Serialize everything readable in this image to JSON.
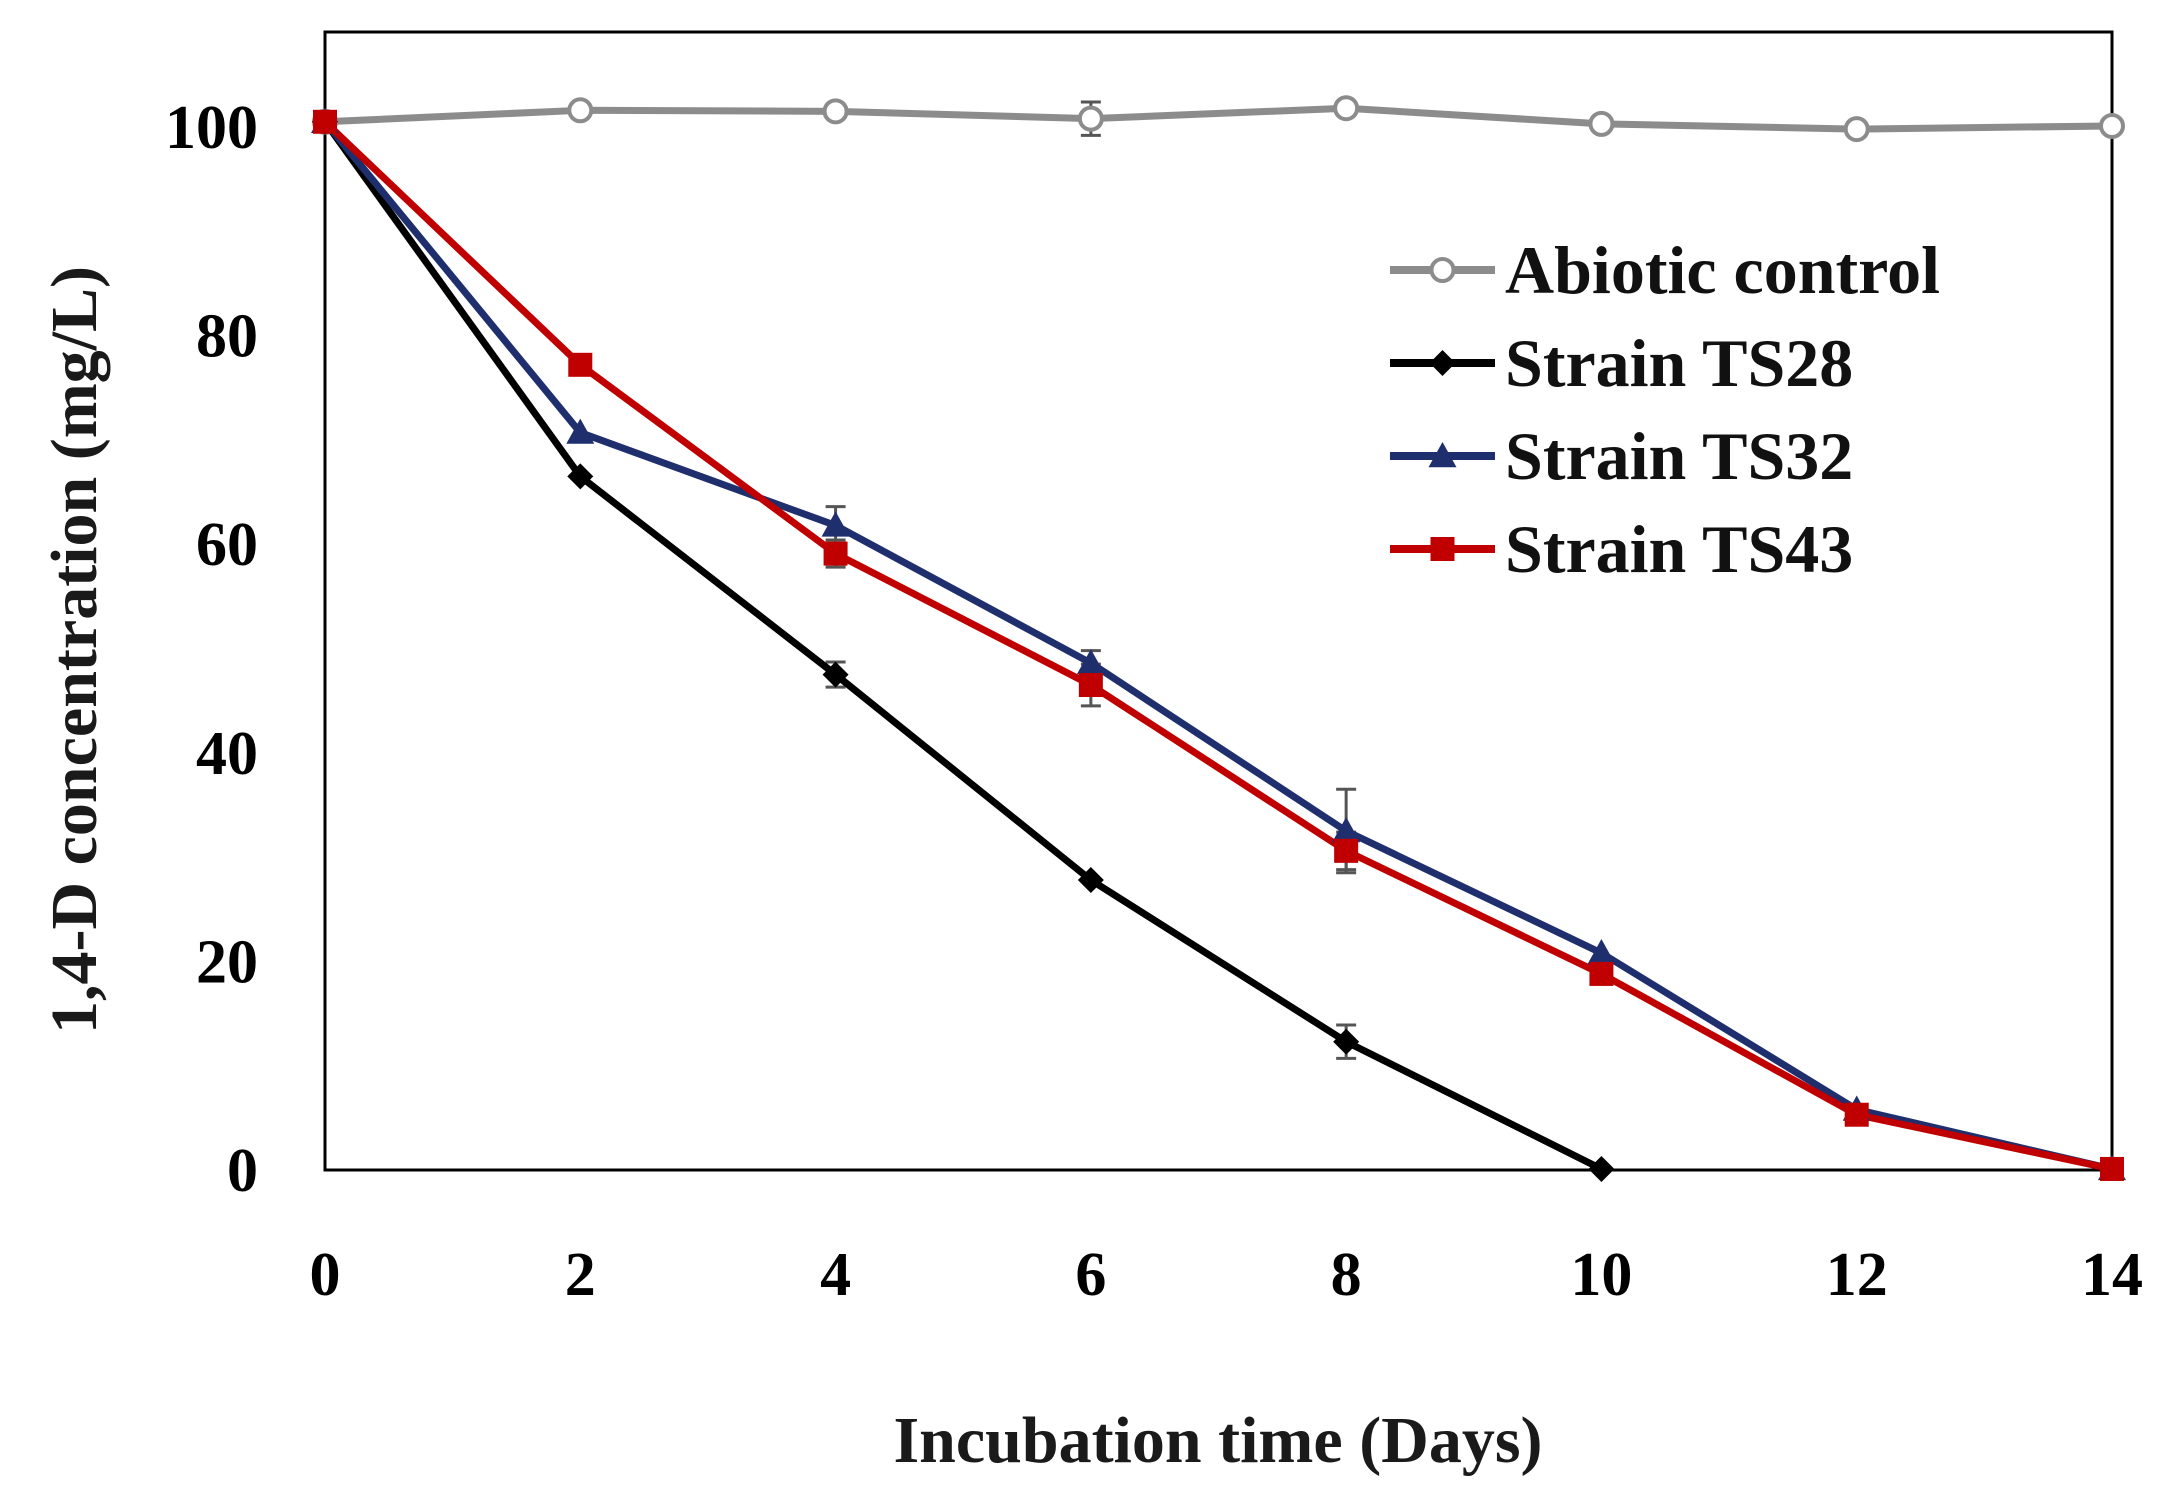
{
  "chart_data": {
    "type": "line",
    "title": "",
    "xlabel": "Incubation time (Days)",
    "ylabel": "1,4-D concentration (mg/L)",
    "xlim": [
      0,
      14
    ],
    "ylim": [
      0,
      110
    ],
    "xticks": [
      0,
      2,
      4,
      6,
      8,
      10,
      12,
      14
    ],
    "yticks": [
      0,
      20,
      40,
      60,
      80,
      100
    ],
    "grid": false,
    "legend_position": "top-right",
    "series": [
      {
        "name": "Abiotic control",
        "color": "#8c8c8c",
        "marker": "open-circle",
        "x": [
          0,
          2,
          4,
          6,
          8,
          10,
          12,
          14
        ],
        "y": [
          100.5,
          101.6,
          101.5,
          100.8,
          101.8,
          100.3,
          99.8,
          100.1
        ],
        "err": [
          0,
          0,
          0,
          1.6,
          0,
          0,
          0,
          0
        ]
      },
      {
        "name": "Strain TS28",
        "color": "#000000",
        "marker": "diamond",
        "x": [
          0,
          2,
          4,
          6,
          8,
          10
        ],
        "y": [
          100.5,
          66.5,
          47.5,
          27.8,
          12.3,
          0.1
        ],
        "err": [
          0,
          0,
          1.2,
          0,
          1.6,
          0
        ]
      },
      {
        "name": "Strain TS32",
        "color": "#1f2f6e",
        "marker": "triangle",
        "x": [
          0,
          2,
          4,
          6,
          8,
          10,
          12,
          14
        ],
        "y": [
          100.5,
          70.7,
          61.8,
          48.6,
          32.5,
          20.8,
          5.8,
          0.1
        ],
        "err": [
          0,
          0,
          1.8,
          1.2,
          4.0,
          0,
          0,
          0
        ]
      },
      {
        "name": "Strain TS43",
        "color": "#c00000",
        "marker": "square",
        "x": [
          0,
          2,
          4,
          6,
          8,
          10,
          12,
          14
        ],
        "y": [
          100.5,
          77.2,
          59.1,
          46.5,
          30.6,
          18.8,
          5.3,
          0.1
        ],
        "err": [
          0,
          0,
          1.3,
          2.0,
          1.8,
          0,
          0,
          0
        ]
      }
    ]
  }
}
